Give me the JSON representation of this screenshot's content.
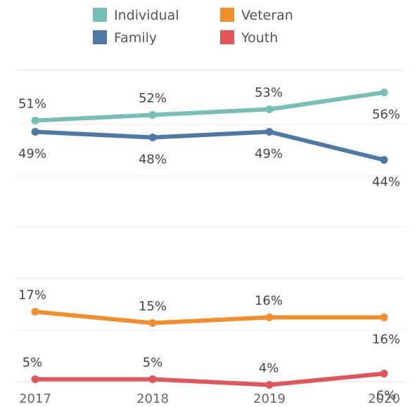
{
  "chart_data": {
    "type": "line",
    "categories": [
      "2017",
      "2018",
      "2019",
      "2020"
    ],
    "series": [
      {
        "name": "Individual",
        "color": "#76bfb2",
        "values": [
          51,
          52,
          53,
          56
        ],
        "labels": [
          "51%",
          "52%",
          "53%",
          "56%"
        ]
      },
      {
        "name": "Family",
        "color": "#4e79a7",
        "values": [
          49,
          48,
          49,
          44
        ],
        "labels": [
          "49%",
          "48%",
          "49%",
          "44%"
        ]
      },
      {
        "name": "Veteran",
        "color": "#f28e2b",
        "values": [
          17,
          15,
          16,
          16
        ],
        "labels": [
          "17%",
          "15%",
          "16%",
          "16%"
        ]
      },
      {
        "name": "Youth",
        "color": "#e15759",
        "values": [
          5,
          5,
          4,
          6
        ],
        "labels": [
          "5%",
          "5%",
          "4%",
          "6%"
        ]
      }
    ],
    "ylim": [
      0,
      60
    ],
    "grid": "horizontal",
    "legend_position": "top"
  }
}
